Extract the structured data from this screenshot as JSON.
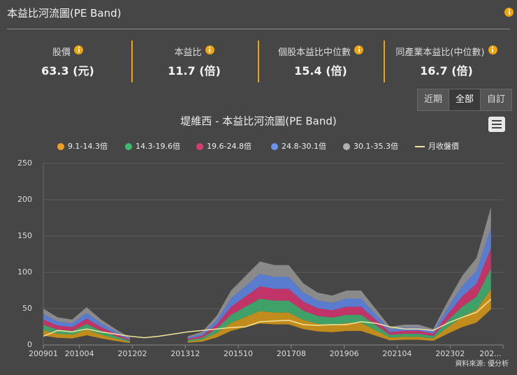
{
  "header": {
    "title": "本益比河流圖(PE Band)"
  },
  "stats": [
    {
      "label": "股價",
      "value": "63.3 (元)"
    },
    {
      "label": "本益比",
      "value": "11.7 (倍)"
    },
    {
      "label": "個股本益比中位數",
      "value": "15.4 (倍)"
    },
    {
      "label": "同產業本益比(中位數)",
      "value": "16.7 (倍)"
    }
  ],
  "buttons": [
    "近期",
    "全部",
    "自訂"
  ],
  "chart_data": {
    "type": "arearange",
    "title": "堤維西 - 本益比河流圖(PE Band)",
    "credit": "資料來源: 優分析",
    "x": [
      "200901",
      "200907",
      "201001",
      "201007",
      "201101",
      "201107",
      "201201",
      "201207",
      "201301",
      "201307",
      "201401",
      "201407",
      "201501",
      "201507",
      "201601",
      "201607",
      "201701",
      "201707",
      "201801",
      "201807",
      "201901",
      "201907",
      "202001",
      "202007",
      "202101",
      "202107",
      "202201",
      "202207",
      "202301",
      "202307",
      "202401",
      "202407"
    ],
    "xlim": [
      "200901",
      "202412"
    ],
    "xticks": [
      "200901",
      "201004",
      "201202",
      "201312",
      "201510",
      "201708",
      "201906",
      "202104",
      "202302",
      {
        "value": "202412",
        "label": "202..."
      }
    ],
    "ylim": [
      0,
      250
    ],
    "yticks": [
      0,
      50,
      100,
      150,
      200,
      250
    ],
    "grid": true,
    "series": [
      {
        "name": "9.1-14.3倍",
        "color": "#c8901a",
        "legend_color": "#f0a020",
        "low": [
          12.9,
          9.8,
          9.0,
          13.4,
          9.0,
          5.7,
          2.6,
          null,
          null,
          null,
          3.1,
          4.6,
          10.3,
          19.3,
          24.5,
          29.6,
          28.4,
          28.4,
          21.9,
          18.6,
          17.5,
          19.3,
          19.3,
          12.9,
          6.4,
          7.2,
          7.2,
          5.7,
          15.5,
          24.5,
          30.9,
          49.0
        ],
        "high": [
          20.3,
          15.4,
          14.2,
          21.1,
          14.2,
          8.9,
          4.1,
          null,
          null,
          null,
          4.9,
          7.3,
          16.2,
          30.4,
          38.5,
          46.6,
          44.6,
          44.6,
          34.4,
          29.2,
          27.5,
          30.4,
          30.4,
          20.3,
          10.1,
          11.3,
          11.3,
          8.9,
          24.3,
          38.5,
          48.6,
          77.0
        ]
      },
      {
        "name": "14.3-19.6倍",
        "color": "#3fa66a",
        "legend_color": "#3fb86f",
        "low": [
          20.3,
          15.4,
          14.2,
          21.1,
          14.2,
          8.9,
          4.1,
          null,
          null,
          null,
          4.9,
          7.3,
          16.2,
          30.4,
          38.5,
          46.6,
          44.6,
          44.6,
          34.4,
          29.2,
          27.5,
          30.4,
          30.4,
          20.3,
          10.1,
          11.3,
          11.3,
          8.9,
          24.3,
          38.5,
          48.6,
          77.0
        ],
        "high": [
          27.8,
          21.1,
          19.4,
          28.9,
          19.4,
          12.2,
          5.6,
          null,
          null,
          null,
          6.7,
          10.0,
          22.2,
          41.6,
          52.7,
          63.8,
          61.1,
          61.1,
          47.2,
          40.0,
          37.8,
          41.6,
          41.6,
          27.8,
          13.9,
          15.5,
          15.5,
          12.2,
          33.3,
          52.7,
          66.6,
          105.5
        ]
      },
      {
        "name": "19.6-24.8倍",
        "color": "#c8346a",
        "legend_color": "#d83a72",
        "low": [
          27.8,
          21.1,
          19.4,
          28.9,
          19.4,
          12.2,
          5.6,
          null,
          null,
          null,
          6.7,
          10.0,
          22.2,
          41.6,
          52.7,
          63.8,
          61.1,
          61.1,
          47.2,
          40.0,
          37.8,
          41.6,
          41.6,
          27.8,
          13.9,
          15.5,
          15.5,
          12.2,
          33.3,
          52.7,
          66.6,
          105.5
        ],
        "high": [
          35.1,
          26.7,
          24.6,
          36.5,
          24.6,
          15.5,
          7.0,
          null,
          null,
          null,
          8.4,
          12.6,
          28.1,
          52.7,
          66.7,
          80.8,
          77.3,
          77.3,
          59.7,
          50.6,
          47.8,
          52.7,
          52.7,
          35.1,
          17.6,
          19.7,
          19.7,
          15.5,
          42.2,
          66.7,
          84.3,
          133.5
        ]
      },
      {
        "name": "24.8-30.1倍",
        "color": "#5b7fd6",
        "legend_color": "#6a93f0",
        "low": [
          35.1,
          26.7,
          24.6,
          36.5,
          24.6,
          15.5,
          7.0,
          null,
          null,
          null,
          8.4,
          12.6,
          28.1,
          52.7,
          66.7,
          80.8,
          77.3,
          77.3,
          59.7,
          50.6,
          47.8,
          52.7,
          52.7,
          35.1,
          17.6,
          19.7,
          19.7,
          15.5,
          42.2,
          66.7,
          84.3,
          133.5
        ],
        "high": [
          42.6,
          32.4,
          29.8,
          44.3,
          29.8,
          18.8,
          8.5,
          null,
          null,
          null,
          10.2,
          15.3,
          34.1,
          64.0,
          81.0,
          98.1,
          93.8,
          93.8,
          72.5,
          61.4,
          58.0,
          64.0,
          64.0,
          42.6,
          21.3,
          23.9,
          23.9,
          18.8,
          51.2,
          81.0,
          102.3,
          162.0
        ]
      },
      {
        "name": "30.1-35.3倍",
        "color": "#8e8e8e",
        "legend_color": "#b0b0b0",
        "low": [
          42.6,
          32.4,
          29.8,
          44.3,
          29.8,
          18.8,
          8.5,
          null,
          null,
          null,
          10.2,
          15.3,
          34.1,
          64.0,
          81.0,
          98.1,
          93.8,
          93.8,
          72.5,
          61.4,
          58.0,
          64.0,
          64.0,
          42.6,
          21.3,
          23.9,
          23.9,
          18.8,
          51.2,
          81.0,
          102.3,
          162.0
        ],
        "high": [
          50,
          38,
          35,
          52,
          35,
          22,
          10,
          null,
          null,
          null,
          12,
          18,
          40,
          75,
          95,
          115,
          110,
          110,
          85,
          72,
          68,
          75,
          75,
          50,
          25,
          28,
          28,
          22,
          60,
          95,
          120,
          190
        ]
      }
    ],
    "line": {
      "name": "月收盤價",
      "color": "#f3e39a",
      "values": [
        12,
        20,
        18,
        22,
        18,
        15,
        12,
        10,
        12,
        15,
        18,
        20,
        22,
        24,
        25,
        32,
        33,
        34,
        28,
        27,
        28,
        28,
        32,
        30,
        25,
        22,
        22,
        20,
        30,
        38,
        45,
        63
      ]
    }
  }
}
